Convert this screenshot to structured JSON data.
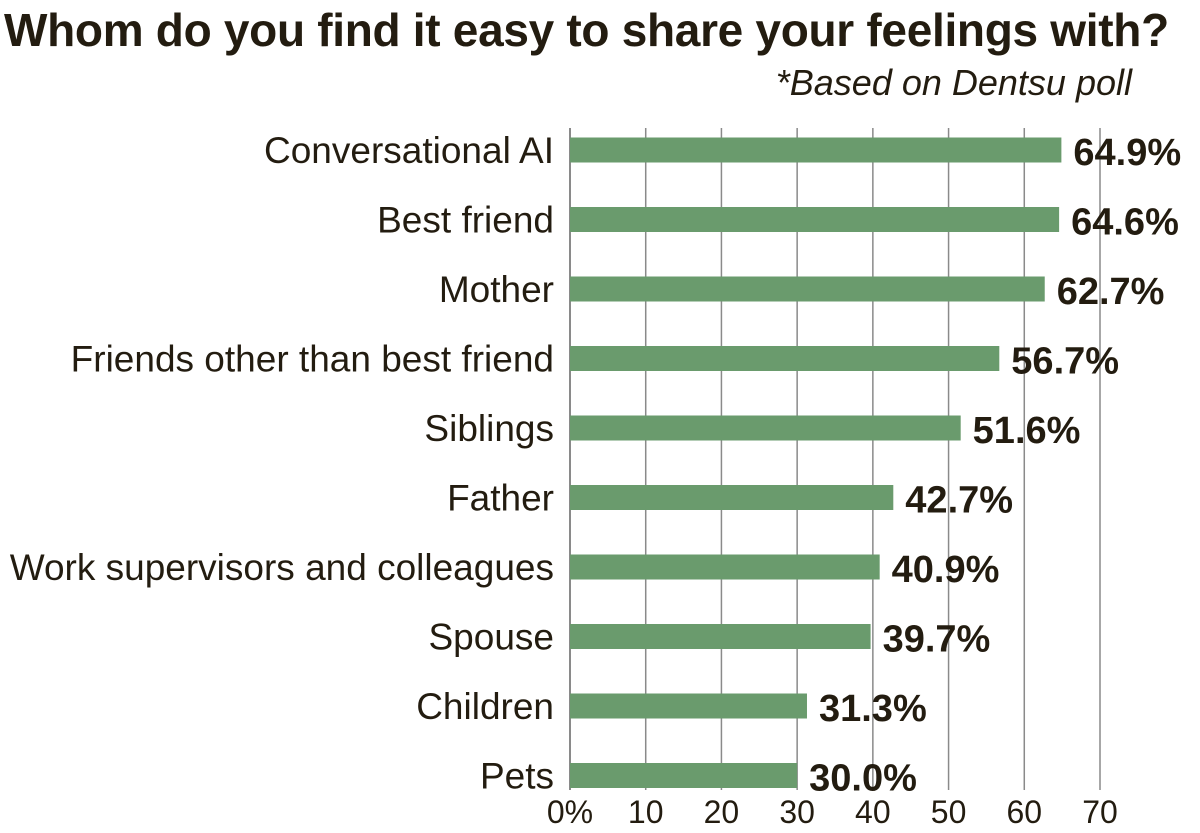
{
  "title": "Whom do you find it easy to share your feelings with?",
  "note": "*Based on Dentsu poll",
  "colors": {
    "bar": "#6a9b6d",
    "grid": "#8a8a8a",
    "text": "#231c10"
  },
  "chart_data": {
    "type": "bar",
    "orientation": "horizontal",
    "title": "Whom do you find it easy to share your feelings with?",
    "categories": [
      "Conversational AI",
      "Best friend",
      "Mother",
      "Friends other than best friend",
      "Siblings",
      "Father",
      "Work supervisors and colleagues",
      "Spouse",
      "Children",
      "Pets"
    ],
    "values": [
      64.9,
      64.6,
      62.7,
      56.7,
      51.6,
      42.7,
      40.9,
      39.7,
      31.3,
      30.0
    ],
    "value_labels": [
      "64.9%",
      "64.6%",
      "62.7%",
      "56.7%",
      "51.6%",
      "42.7%",
      "40.9%",
      "39.7%",
      "31.3%",
      "30.0%"
    ],
    "xticks": [
      "0%",
      "10",
      "20",
      "30",
      "40",
      "50",
      "60",
      "70"
    ],
    "xlim": [
      0,
      70
    ],
    "grid": true,
    "unit": "%"
  }
}
